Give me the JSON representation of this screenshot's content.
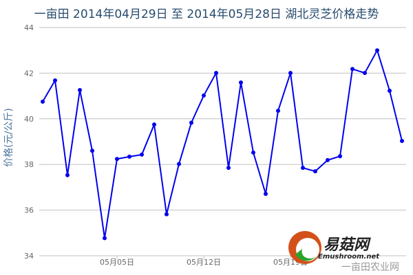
{
  "chart_data": {
    "type": "line",
    "title": "一亩田 2014年04月29日 至 2014年05月28日 湖北灵芝价格走势",
    "ylabel": "价格(元/公斤)",
    "xlabel": "",
    "ylim": [
      34,
      44
    ],
    "yticks": [
      "34",
      "36",
      "38",
      "40",
      "42",
      "44"
    ],
    "xtick_labels": [
      {
        "index": 6,
        "label": "05月05日"
      },
      {
        "index": 13,
        "label": "05月12日"
      },
      {
        "index": 20,
        "label": "05月19日"
      }
    ],
    "grid": true,
    "x": [
      "04-29",
      "04-30",
      "05-01",
      "05-02",
      "05-03",
      "05-04",
      "05-05",
      "05-06",
      "05-07",
      "05-08",
      "05-09",
      "05-10",
      "05-11",
      "05-12",
      "05-13",
      "05-14",
      "05-15",
      "05-16",
      "05-17",
      "05-18",
      "05-19",
      "05-20",
      "05-21",
      "05-22",
      "05-23",
      "05-24",
      "05-25",
      "05-26",
      "05-27",
      "05-28"
    ],
    "values": [
      40.75,
      41.68,
      37.53,
      41.26,
      38.6,
      34.77,
      38.24,
      38.34,
      38.43,
      39.75,
      35.82,
      38.02,
      39.83,
      41.02,
      42.01,
      37.85,
      41.59,
      38.52,
      36.71,
      40.35,
      42.01,
      37.85,
      37.7,
      38.19,
      38.36,
      42.18,
      42.01,
      43.0,
      41.23,
      39.03
    ],
    "line_color": "#0000ee",
    "grid_color": "#c0c0c0"
  },
  "watermark": {
    "site_name": "易菇网",
    "site_url": "Emushroom.net",
    "overlay_text": "一亩田农业网"
  }
}
